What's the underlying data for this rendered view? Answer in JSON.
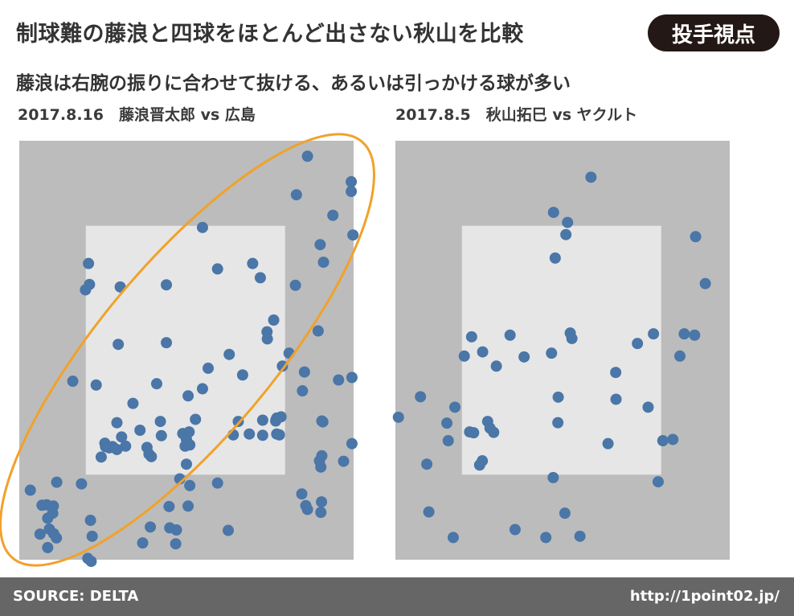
{
  "header": {
    "title": "制球難の藤浪と四球をほとんど出さない秋山を比較",
    "badge": "投手視点",
    "subtitle": "藤浪は右腕の振りに合わせて抜ける、あるいは引っかける球が多い"
  },
  "panels": {
    "left_label": "2017.8.16　藤浪晋太郎 vs 広島",
    "right_label": "2017.8.5　秋山拓巳 vs ヤクルト"
  },
  "footer": {
    "source": "SOURCE: DELTA",
    "url": "http://1point02.jp/"
  },
  "colors": {
    "outer_zone": "#bcbcbc",
    "strike_zone": "#e6e6e6",
    "point": "#4a76a8",
    "highlight_ellipse": "#f0a22b",
    "badge_bg": "#231815",
    "footer_bg": "#666666"
  },
  "chart_data": [
    {
      "type": "scatter",
      "title": "2017.8.16　藤浪晋太郎 vs 広島",
      "xlim": [
        0,
        1
      ],
      "ylim": [
        0,
        1
      ],
      "strike_zone": {
        "x": [
          0.199,
          0.795
        ],
        "y": [
          0.203,
          0.797
        ]
      },
      "highlight": "ellipse",
      "points": [
        [
          0.862,
          0.963
        ],
        [
          0.829,
          0.871
        ],
        [
          0.993,
          0.902
        ],
        [
          0.993,
          0.879
        ],
        [
          0.938,
          0.822
        ],
        [
          0.548,
          0.793
        ],
        [
          0.998,
          0.775
        ],
        [
          0.9,
          0.752
        ],
        [
          0.91,
          0.71
        ],
        [
          0.207,
          0.707
        ],
        [
          0.21,
          0.657
        ],
        [
          0.198,
          0.644
        ],
        [
          0.302,
          0.651
        ],
        [
          0.44,
          0.656
        ],
        [
          0.593,
          0.694
        ],
        [
          0.698,
          0.707
        ],
        [
          0.721,
          0.673
        ],
        [
          0.826,
          0.655
        ],
        [
          0.761,
          0.572
        ],
        [
          0.741,
          0.544
        ],
        [
          0.742,
          0.527
        ],
        [
          0.894,
          0.546
        ],
        [
          0.296,
          0.514
        ],
        [
          0.44,
          0.518
        ],
        [
          0.628,
          0.49
        ],
        [
          0.807,
          0.493
        ],
        [
          0.787,
          0.462
        ],
        [
          0.565,
          0.457
        ],
        [
          0.668,
          0.441
        ],
        [
          0.853,
          0.448
        ],
        [
          0.16,
          0.426
        ],
        [
          0.23,
          0.417
        ],
        [
          0.411,
          0.42
        ],
        [
          0.548,
          0.408
        ],
        [
          0.847,
          0.403
        ],
        [
          0.955,
          0.429
        ],
        [
          0.995,
          0.435
        ],
        [
          0.34,
          0.373
        ],
        [
          0.505,
          0.391
        ],
        [
          0.527,
          0.335
        ],
        [
          0.292,
          0.327
        ],
        [
          0.422,
          0.33
        ],
        [
          0.655,
          0.33
        ],
        [
          0.728,
          0.333
        ],
        [
          0.767,
          0.331
        ],
        [
          0.768,
          0.334
        ],
        [
          0.77,
          0.338
        ],
        [
          0.783,
          0.341
        ],
        [
          0.905,
          0.331
        ],
        [
          0.908,
          0.329
        ],
        [
          0.256,
          0.278
        ],
        [
          0.258,
          0.27
        ],
        [
          0.269,
          0.267
        ],
        [
          0.292,
          0.263
        ],
        [
          0.318,
          0.271
        ],
        [
          0.306,
          0.293
        ],
        [
          0.361,
          0.309
        ],
        [
          0.425,
          0.296
        ],
        [
          0.489,
          0.301
        ],
        [
          0.508,
          0.305
        ],
        [
          0.5,
          0.287
        ],
        [
          0.51,
          0.274
        ],
        [
          0.496,
          0.271
        ],
        [
          0.382,
          0.268
        ],
        [
          0.388,
          0.252
        ],
        [
          0.395,
          0.246
        ],
        [
          0.245,
          0.245
        ],
        [
          0.279,
          0.27
        ],
        [
          0.5,
          0.228
        ],
        [
          0.64,
          0.298
        ],
        [
          0.688,
          0.3
        ],
        [
          0.728,
          0.297
        ],
        [
          0.77,
          0.3
        ],
        [
          0.778,
          0.298
        ],
        [
          0.905,
          0.248
        ],
        [
          0.898,
          0.236
        ],
        [
          0.902,
          0.221
        ],
        [
          0.97,
          0.235
        ],
        [
          0.995,
          0.277
        ],
        [
          0.033,
          0.166
        ],
        [
          0.112,
          0.185
        ],
        [
          0.186,
          0.181
        ],
        [
          0.51,
          0.177
        ],
        [
          0.593,
          0.183
        ],
        [
          0.48,
          0.193
        ],
        [
          0.845,
          0.157
        ],
        [
          0.904,
          0.138
        ],
        [
          0.857,
          0.129
        ],
        [
          0.862,
          0.12
        ],
        [
          0.902,
          0.113
        ],
        [
          0.068,
          0.13
        ],
        [
          0.082,
          0.131
        ],
        [
          0.102,
          0.128
        ],
        [
          0.097,
          0.127
        ],
        [
          0.1,
          0.111
        ],
        [
          0.448,
          0.127
        ],
        [
          0.505,
          0.128
        ],
        [
          0.213,
          0.094
        ],
        [
          0.085,
          0.099
        ],
        [
          0.392,
          0.078
        ],
        [
          0.45,
          0.076
        ],
        [
          0.47,
          0.071
        ],
        [
          0.062,
          0.061
        ],
        [
          0.103,
          0.062
        ],
        [
          0.09,
          0.073
        ],
        [
          0.111,
          0.052
        ],
        [
          0.218,
          0.056
        ],
        [
          0.369,
          0.04
        ],
        [
          0.468,
          0.038
        ],
        [
          0.625,
          0.07
        ],
        [
          0.085,
          0.029
        ],
        [
          0.205,
          0.003
        ],
        [
          0.215,
          -0.004
        ]
      ]
    },
    {
      "type": "scatter",
      "title": "2017.8.5　秋山拓巳 vs ヤクルト",
      "xlim": [
        0,
        1
      ],
      "ylim": [
        0,
        1
      ],
      "strike_zone": {
        "x": [
          0.199,
          0.795
        ],
        "y": [
          0.203,
          0.797
        ]
      },
      "points": [
        [
          0.585,
          0.913
        ],
        [
          0.473,
          0.829
        ],
        [
          0.515,
          0.805
        ],
        [
          0.51,
          0.776
        ],
        [
          0.478,
          0.72
        ],
        [
          0.898,
          0.771
        ],
        [
          0.927,
          0.659
        ],
        [
          0.228,
          0.532
        ],
        [
          0.343,
          0.536
        ],
        [
          0.528,
          0.528
        ],
        [
          0.523,
          0.541
        ],
        [
          0.772,
          0.539
        ],
        [
          0.724,
          0.516
        ],
        [
          0.864,
          0.539
        ],
        [
          0.895,
          0.536
        ],
        [
          0.206,
          0.486
        ],
        [
          0.261,
          0.496
        ],
        [
          0.385,
          0.484
        ],
        [
          0.467,
          0.493
        ],
        [
          0.302,
          0.462
        ],
        [
          0.659,
          0.447
        ],
        [
          0.851,
          0.486
        ],
        [
          0.075,
          0.389
        ],
        [
          0.178,
          0.364
        ],
        [
          0.154,
          0.326
        ],
        [
          0.487,
          0.388
        ],
        [
          0.66,
          0.383
        ],
        [
          0.756,
          0.364
        ],
        [
          0.009,
          0.34
        ],
        [
          0.276,
          0.33
        ],
        [
          0.283,
          0.314
        ],
        [
          0.294,
          0.304
        ],
        [
          0.234,
          0.303
        ],
        [
          0.486,
          0.327
        ],
        [
          0.158,
          0.284
        ],
        [
          0.222,
          0.305
        ],
        [
          0.636,
          0.277
        ],
        [
          0.8,
          0.284
        ],
        [
          0.83,
          0.287
        ],
        [
          0.26,
          0.236
        ],
        [
          0.252,
          0.226
        ],
        [
          0.094,
          0.228
        ],
        [
          0.472,
          0.196
        ],
        [
          0.786,
          0.186
        ],
        [
          0.1,
          0.114
        ],
        [
          0.507,
          0.111
        ],
        [
          0.358,
          0.072
        ],
        [
          0.45,
          0.053
        ],
        [
          0.173,
          0.053
        ],
        [
          0.552,
          0.056
        ]
      ]
    }
  ]
}
